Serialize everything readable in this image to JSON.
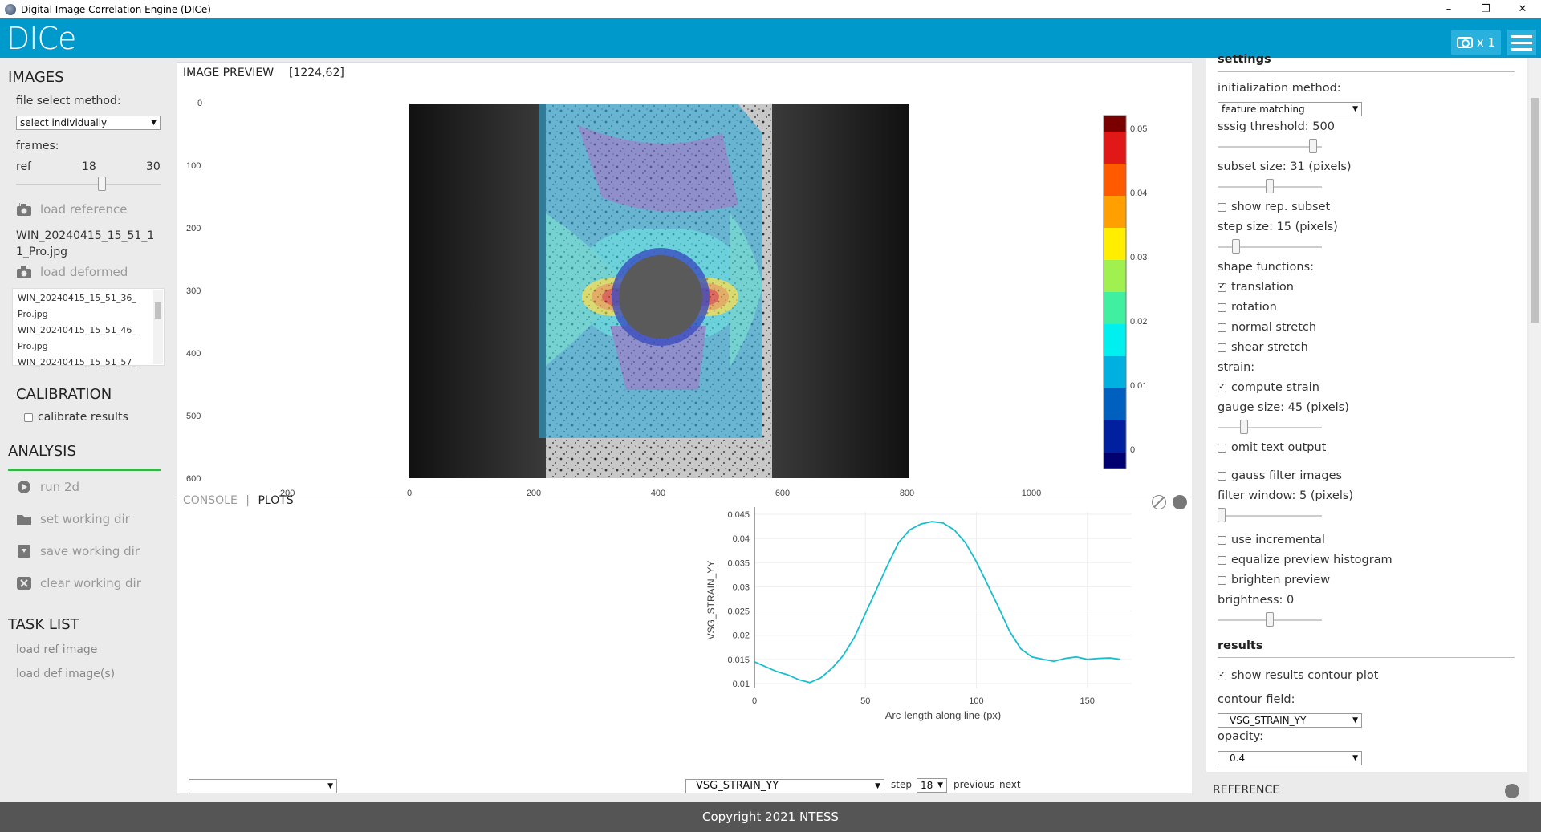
{
  "window": {
    "title": "Digital Image Correlation Engine (DICe)",
    "minimize": "–",
    "maximize": "❐",
    "close": "✕"
  },
  "header": {
    "logo": "DICe",
    "camera_label": "x 1"
  },
  "left": {
    "images_title": "IMAGES",
    "file_select_label": "file select method:",
    "file_select_value": "select individually",
    "frames_label": "frames:",
    "frames_ref": "ref",
    "frames_current": "18",
    "frames_max": "30",
    "frames_slider_value": 0.6,
    "load_reference": "load reference",
    "reference_file": "WIN_20240415_15_51_11_Pro.jpg",
    "load_deformed": "load deformed",
    "deformed_files": [
      "WIN_20240415_15_51_36_",
      "Pro.jpg",
      "WIN_20240415_15_51_46_",
      "Pro.jpg",
      "WIN_20240415_15_51_57_"
    ],
    "calibration_title": "CALIBRATION",
    "calibrate_results": "calibrate results",
    "analysis_title": "ANALYSIS",
    "run_2d": "run 2d",
    "set_working_dir": "set working dir",
    "save_working_dir": "save working dir",
    "clear_working_dir": "clear working dir",
    "task_list_title": "TASK LIST",
    "tasks": [
      "load ref image",
      "load def image(s)"
    ]
  },
  "preview": {
    "title": "IMAGE PREVIEW",
    "coords": "[1224,62]",
    "y_ticks": [
      "0",
      "100",
      "200",
      "300",
      "400",
      "500",
      "600"
    ],
    "x_ticks": [
      "−200",
      "0",
      "200",
      "400",
      "600",
      "800",
      "1000"
    ],
    "colorbar_ticks": [
      "0.05",
      "0.04",
      "0.03",
      "0.02",
      "0.01",
      "0"
    ]
  },
  "lower": {
    "tab_console": "CONSOLE",
    "tab_separator": "|",
    "tab_plots": "PLOTS",
    "field_select": "VSG_STRAIN_YY",
    "step_label": "step",
    "step_value": "18",
    "previous": "previous",
    "next": "next"
  },
  "chart_data": {
    "type": "line",
    "xlabel": "Arc-length along line (px)",
    "ylabel": "VSG_STRAIN_YY",
    "xlim": [
      0,
      170
    ],
    "ylim": [
      0.009,
      0.0455
    ],
    "x_ticks": [
      "0",
      "50",
      "100",
      "150"
    ],
    "y_ticks": [
      "0.01",
      "0.015",
      "0.02",
      "0.025",
      "0.03",
      "0.035",
      "0.04",
      "0.045"
    ],
    "series": [
      {
        "x": [
          0,
          5,
          10,
          15,
          20,
          25,
          30,
          35,
          40,
          45,
          50,
          55,
          60,
          65,
          70,
          75,
          80,
          85,
          90,
          95,
          100,
          105,
          110,
          115,
          120,
          125,
          130,
          135,
          140,
          145,
          150,
          155,
          160,
          165
        ],
        "values": [
          0.0145,
          0.0135,
          0.0125,
          0.0118,
          0.0108,
          0.0102,
          0.0112,
          0.0132,
          0.0158,
          0.0195,
          0.0245,
          0.0295,
          0.0345,
          0.0392,
          0.0418,
          0.043,
          0.0435,
          0.0432,
          0.0418,
          0.0392,
          0.0352,
          0.0305,
          0.0258,
          0.0208,
          0.0172,
          0.0155,
          0.015,
          0.0146,
          0.0152,
          0.0155,
          0.015,
          0.0152,
          0.0153,
          0.015
        ]
      }
    ]
  },
  "right": {
    "settings_title": "settings",
    "init_method_label": "initialization method:",
    "init_method_value": "feature matching",
    "sssig_label": "sssig threshold: 500",
    "sssig_slider": 0.95,
    "subset_label": "subset size: 31 (pixels)",
    "subset_slider": 0.5,
    "show_rep_subset": "show rep. subset",
    "step_size_label": "step size: 15 (pixels)",
    "step_slider": 0.15,
    "shape_functions_label": "shape functions:",
    "sf_translation": "translation",
    "sf_rotation": "rotation",
    "sf_normal_stretch": "normal stretch",
    "sf_shear_stretch": "shear stretch",
    "strain_label": "strain:",
    "compute_strain": "compute strain",
    "gauge_label": "gauge size: 45 (pixels)",
    "gauge_slider": 0.23,
    "omit_text_output": "omit text output",
    "gauss_filter": "gauss filter images",
    "filter_window_label": "filter window: 5 (pixels)",
    "filter_slider": 0.0,
    "use_incremental": "use incremental",
    "equalize_histogram": "equalize preview histogram",
    "brighten_preview": "brighten preview",
    "brightness_label": "brightness: 0",
    "brightness_slider": 0.5,
    "results_title": "results",
    "show_contour": "show results contour plot",
    "contour_field_label": "contour field:",
    "contour_field_value": "VSG_STRAIN_YY",
    "opacity_label": "opacity:",
    "opacity_value": "0.4",
    "reference_title": "REFERENCE"
  },
  "footer": {
    "copyright": "Copyright 2021 NTESS"
  },
  "colors": {
    "header": "#0099cc",
    "accent_green": "#3cb34a",
    "plot_line": "#17becf"
  }
}
